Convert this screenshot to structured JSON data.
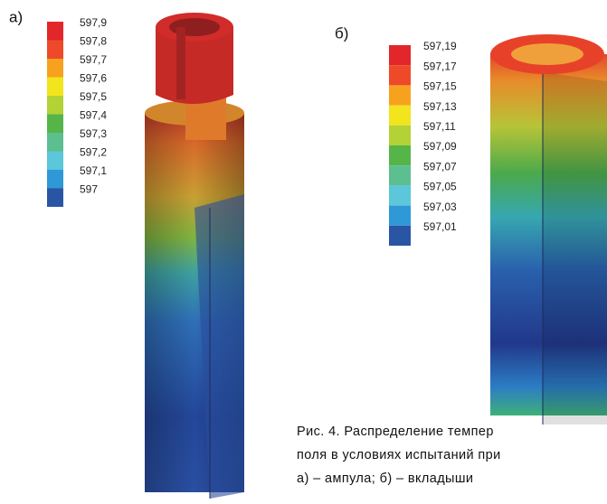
{
  "panel_a": {
    "label": "а)",
    "legend": [
      "597,9",
      "597,8",
      "597,7",
      "597,6",
      "597,5",
      "597,4",
      "597,3",
      "597,2",
      "597,1",
      "597"
    ]
  },
  "panel_b": {
    "label": "б)",
    "legend": [
      "597,19",
      "597,17",
      "597,15",
      "597,13",
      "597,11",
      "597,09",
      "597,07",
      "597,05",
      "597,03",
      "597,01"
    ]
  },
  "caption": {
    "lines": [
      "Рис. 4. Распределение темпер",
      "поля в условиях испытаний при",
      "а) – ампула; б) – вкладыши"
    ]
  }
}
